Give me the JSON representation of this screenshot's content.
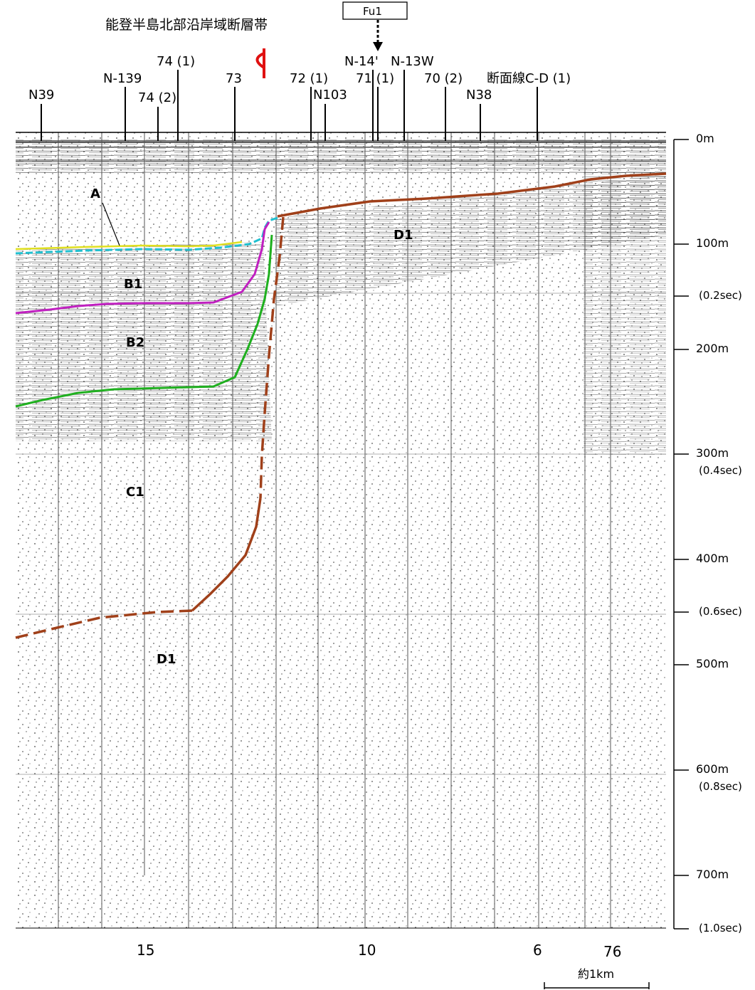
{
  "fault_zone_name": "能登半島北部沿岸域断層帯",
  "fault_box_label": "Fu1",
  "line_labels": [
    {
      "id": "n39",
      "text": "N39"
    },
    {
      "id": "n139",
      "text": "N-139"
    },
    {
      "id": "74-1",
      "text": "74 (1)"
    },
    {
      "id": "74-2",
      "text": "74 (2)"
    },
    {
      "id": "73",
      "text": "73"
    },
    {
      "id": "72-1",
      "text": "72 (1)"
    },
    {
      "id": "n103",
      "text": "N103"
    },
    {
      "id": "n14",
      "text": "N-14'"
    },
    {
      "id": "71-1",
      "text": "71 (1)"
    },
    {
      "id": "n13w",
      "text": "N-13W"
    },
    {
      "id": "70-2",
      "text": "70 (2)"
    },
    {
      "id": "n38",
      "text": "N38"
    },
    {
      "id": "cd1",
      "text": "断面線C-D (1)"
    }
  ],
  "depth_scale": [
    {
      "depth": "0m",
      "sec": ""
    },
    {
      "depth": "100m",
      "sec": ""
    },
    {
      "depth": "",
      "sec": "(0.2sec)"
    },
    {
      "depth": "200m",
      "sec": ""
    },
    {
      "depth": "300m",
      "sec": "(0.4sec)"
    },
    {
      "depth": "400m",
      "sec": ""
    },
    {
      "depth": "",
      "sec": "(0.6sec)"
    },
    {
      "depth": "500m",
      "sec": ""
    },
    {
      "depth": "600m",
      "sec": "(0.8sec)"
    },
    {
      "depth": "700m",
      "sec": ""
    },
    {
      "depth": "",
      "sec": "(1.0sec)"
    }
  ],
  "unit_labels": {
    "A": "A",
    "B1": "B1",
    "B2": "B2",
    "C1": "C1",
    "D1_left": "D1",
    "D1_right": "D1"
  },
  "bottom_axis": [
    "15",
    "10",
    "6",
    "76"
  ],
  "scale_bar": "約1km",
  "colors": {
    "unit_A": "#e0e020",
    "unit_A_base": "#20c0d0",
    "unit_B1_base": "#c020c0",
    "unit_B2_base": "#20b020",
    "unit_D1_top": "#a0401a",
    "fault_marker": "#e01010"
  }
}
